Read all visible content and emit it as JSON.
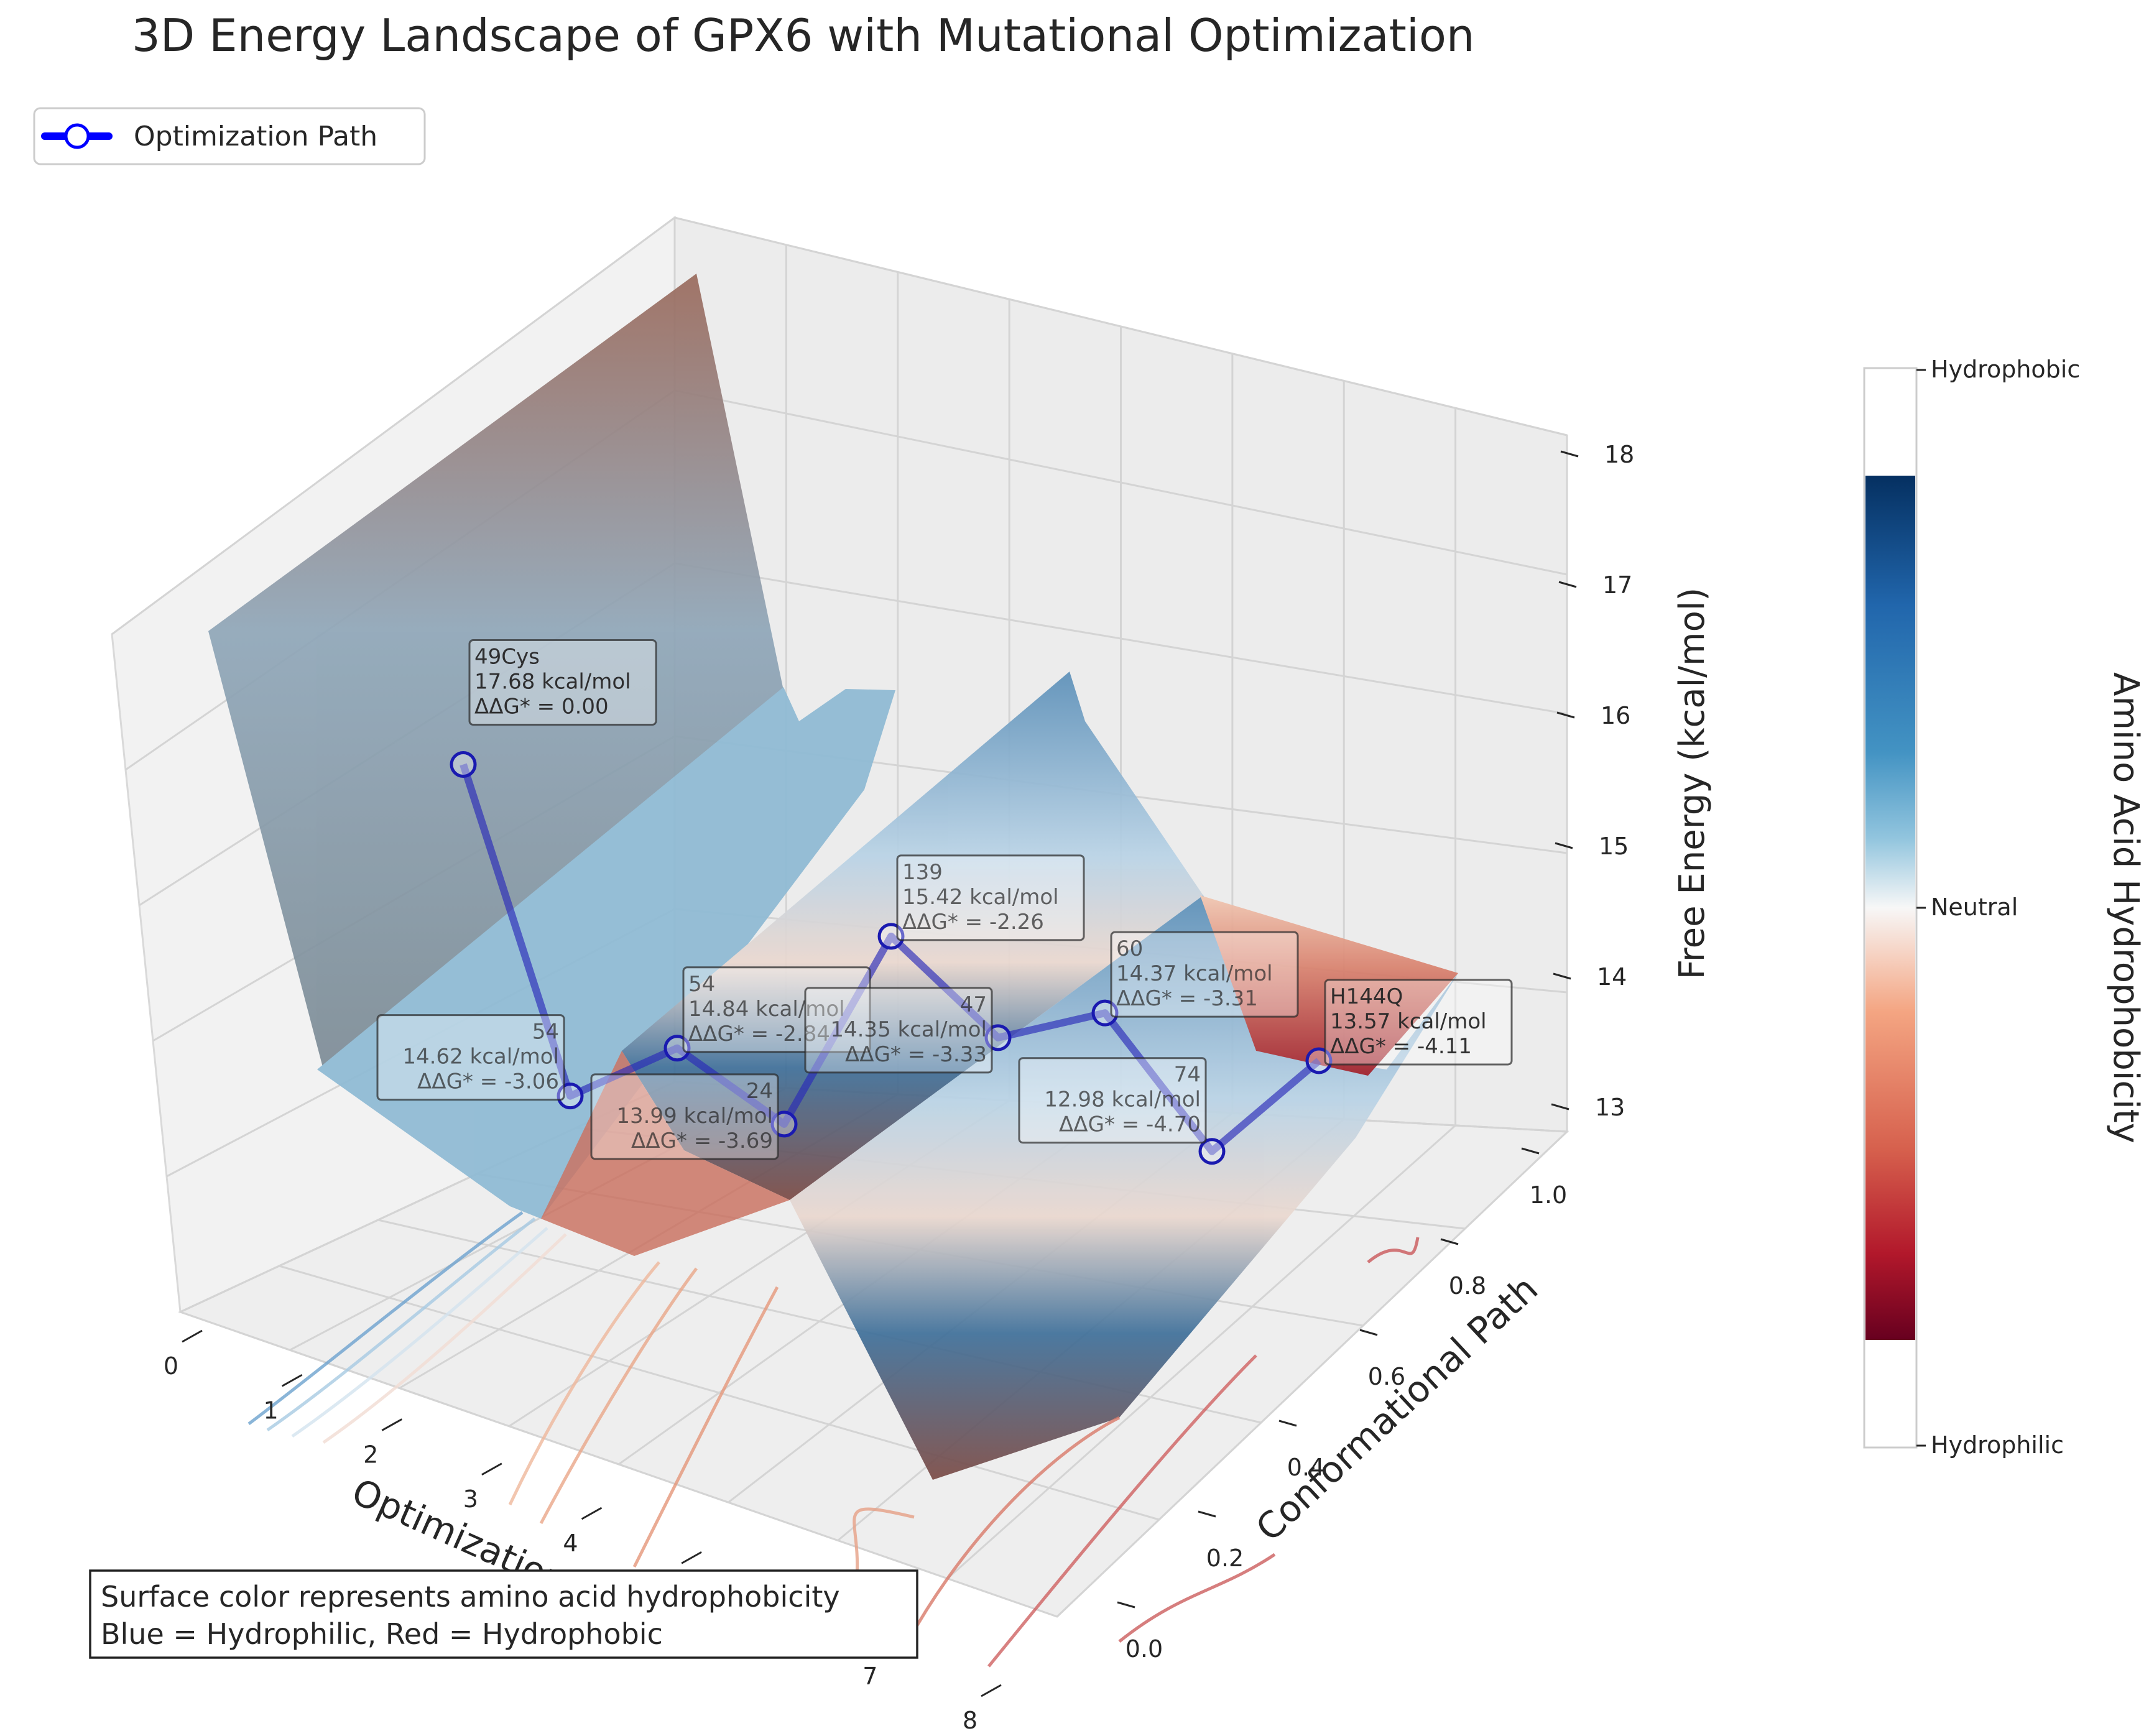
{
  "chart_data": {
    "type": "surface",
    "title": "3D Energy Landscape of GPX6 with Mutational Optimization",
    "xlabel": "Optimization Step",
    "ylabel": "Conformational Path",
    "zlabel": "Free Energy (kcal/mol)",
    "x_ticks": [
      "0",
      "1",
      "2",
      "3",
      "4",
      "5",
      "6",
      "7",
      "8"
    ],
    "y_ticks": [
      "0.0",
      "0.2",
      "0.4",
      "0.6",
      "0.8",
      "1.0"
    ],
    "z_ticks": [
      "13",
      "14",
      "15",
      "16",
      "17",
      "18"
    ],
    "xlim": [
      0,
      8
    ],
    "ylim": [
      0,
      1
    ],
    "zlim": [
      13,
      18
    ],
    "legend": {
      "label": "Optimization Path",
      "placement": "upper-left",
      "color": "#0000ff"
    },
    "colorbar": {
      "label": "Amino Acid Hydrophobicity",
      "tick_top": "Hydrophobic",
      "tick_mid": "Neutral",
      "tick_bottom": "Hydrophilic",
      "colormap": "RdBu"
    },
    "note_lines": [
      "Surface color represents amino acid hydrophobicity",
      "Blue = Hydrophilic, Red = Hydrophobic"
    ],
    "path_points": [
      {
        "step": 0,
        "conformation": 0.6,
        "energy": 17.68,
        "labels": [
          "49Cys",
          "17.68 kcal/mol",
          "ΔΔG* = 0.00"
        ]
      },
      {
        "step": 1,
        "conformation": 0.6,
        "energy": 14.62,
        "labels": [
          "54",
          "14.62 kcal/mol",
          "ΔΔG* = -3.06"
        ]
      },
      {
        "step": 2,
        "conformation": 0.6,
        "energy": 14.84,
        "labels": [
          "54",
          "14.84 kcal/mol",
          "ΔΔG* = -2.84"
        ]
      },
      {
        "step": 3,
        "conformation": 0.6,
        "energy": 13.99,
        "labels": [
          "24",
          "13.99 kcal/mol",
          "ΔΔG* = -3.69"
        ]
      },
      {
        "step": 4,
        "conformation": 0.6,
        "energy": 15.42,
        "labels": [
          "139",
          "15.42 kcal/mol",
          "ΔΔG* = -2.26"
        ]
      },
      {
        "step": 5,
        "conformation": 0.6,
        "energy": 14.35,
        "labels": [
          "47",
          "14.35 kcal/mol",
          "ΔΔG* = -3.33"
        ]
      },
      {
        "step": 6,
        "conformation": 0.6,
        "energy": 14.37,
        "labels": [
          "60",
          "14.37 kcal/mol",
          "ΔΔG* = -3.31"
        ]
      },
      {
        "step": 7,
        "conformation": 0.6,
        "energy": 12.98,
        "labels": [
          "74",
          "12.98 kcal/mol",
          "ΔΔG* = -4.70"
        ]
      },
      {
        "step": 8,
        "conformation": 0.6,
        "energy": 13.57,
        "labels": [
          "H144Q",
          "13.57 kcal/mol",
          "ΔΔG* = -4.11"
        ]
      }
    ]
  }
}
